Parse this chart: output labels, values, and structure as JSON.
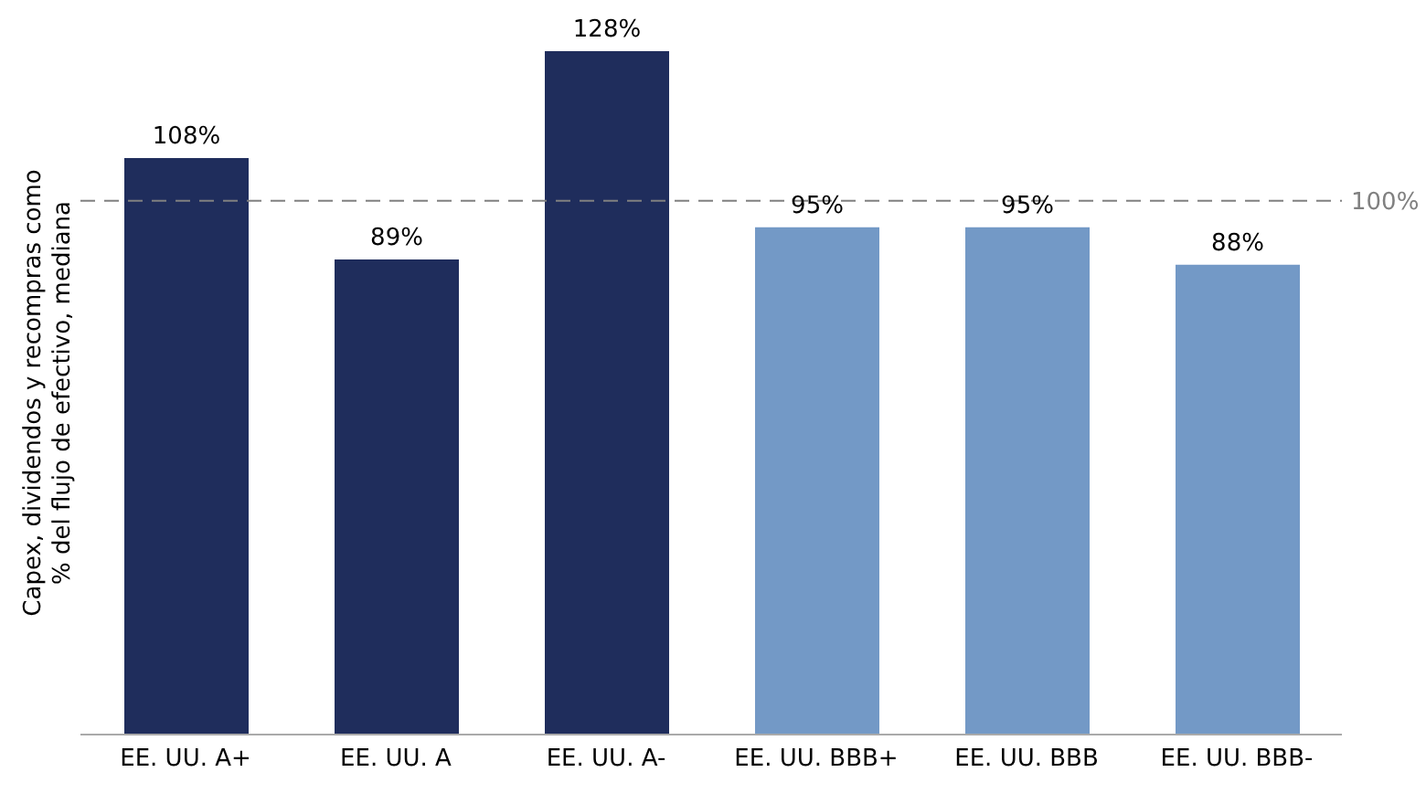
{
  "chart_data": {
    "type": "bar",
    "ylabel": "Capex, dividendos y recompras como % del flujo de efectivo, mediana",
    "categories": [
      "EE. UU. A+",
      "EE. UU. A",
      "EE. UU. A-",
      "EE. UU. BBB+",
      "EE. UU. BBB",
      "EE. UU. BBB-"
    ],
    "values": [
      108,
      89,
      128,
      95,
      95,
      88
    ],
    "colors": [
      "#1f2d5c",
      "#1f2d5c",
      "#1f2d5c",
      "#7399c6",
      "#7399c6",
      "#7399c6"
    ],
    "value_labels": [
      "108%",
      "89%",
      "128%",
      "95%",
      "95%",
      "88%"
    ],
    "tick_labels": "x",
    "grid": false,
    "ref_lines": [
      {
        "axis": "y",
        "value": 100,
        "label": "100%",
        "color": "#808080",
        "line_style": "dashed"
      }
    ]
  }
}
